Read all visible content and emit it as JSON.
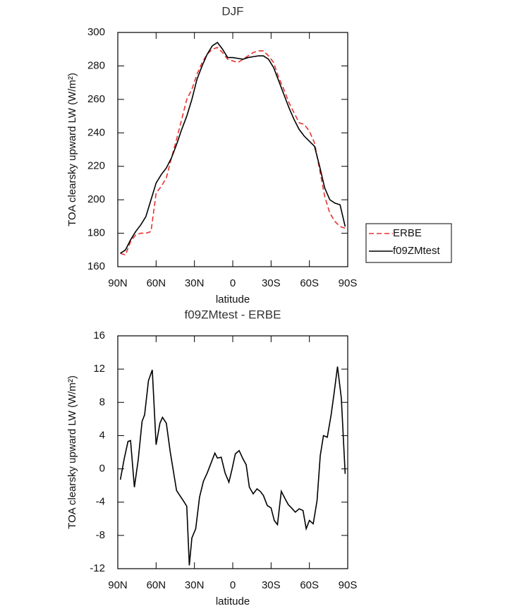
{
  "chart_data": [
    {
      "type": "line",
      "title": "DJF",
      "xlabel": "latitude",
      "ylabel": "TOA clearsky upward LW (W/m²)",
      "xlim": [
        90,
        -90
      ],
      "xticks": [
        {
          "value": 90,
          "label": "90N"
        },
        {
          "value": 60,
          "label": "60N"
        },
        {
          "value": 30,
          "label": "30N"
        },
        0,
        {
          "value": -30,
          "label": "30S"
        },
        {
          "value": -60,
          "label": "60S"
        },
        {
          "value": -90,
          "label": "90S"
        }
      ],
      "ylim": [
        160,
        300
      ],
      "yticks": [
        160,
        180,
        200,
        220,
        240,
        260,
        280,
        300
      ],
      "legend": "right",
      "x": [
        88,
        84,
        80,
        76,
        72,
        68,
        64,
        60,
        56,
        52,
        48,
        44,
        40,
        36,
        32,
        28,
        24,
        20,
        16,
        12,
        8,
        4,
        0,
        -4,
        -8,
        -12,
        -16,
        -20,
        -24,
        -28,
        -32,
        -36,
        -40,
        -44,
        -48,
        -52,
        -56,
        -60,
        -64,
        -68,
        -72,
        -76,
        -80,
        -84,
        -88
      ],
      "series": [
        {
          "name": "ERBE",
          "color": "#e8312f",
          "linestyle": "dashed",
          "values": [
            168,
            167,
            175,
            179,
            180,
            180,
            181,
            204,
            208,
            213,
            225,
            236,
            248,
            260,
            266,
            275,
            282,
            287,
            290,
            291,
            288,
            284,
            283,
            282,
            284,
            286,
            288,
            289,
            289,
            286,
            282,
            273,
            266,
            258,
            252,
            246,
            245,
            241,
            234,
            218,
            202,
            192,
            187,
            184,
            183
          ]
        },
        {
          "name": "f09ZMtest",
          "color": "#000000",
          "linestyle": "solid",
          "values": [
            168,
            170,
            176,
            181,
            185,
            190,
            200,
            210,
            215,
            219,
            225,
            233,
            242,
            250,
            260,
            272,
            280,
            287,
            292,
            294,
            290,
            285,
            285,
            284.5,
            284,
            285,
            285.5,
            286,
            286,
            284,
            279,
            271,
            263,
            255,
            248,
            242,
            238,
            235,
            232,
            220,
            207,
            200,
            198,
            197,
            184
          ]
        }
      ]
    },
    {
      "type": "line",
      "title": "f09ZMtest - ERBE",
      "xlabel": "latitude",
      "ylabel": "TOA clearsky upward LW (W/m²)",
      "xlim": [
        90,
        -90
      ],
      "xticks": [
        {
          "value": 90,
          "label": "90N"
        },
        {
          "value": 60,
          "label": "60N"
        },
        {
          "value": 30,
          "label": "30N"
        },
        0,
        {
          "value": -30,
          "label": "30S"
        },
        {
          "value": -60,
          "label": "60S"
        },
        {
          "value": -90,
          "label": "90S"
        }
      ],
      "ylim": [
        -12,
        16
      ],
      "yticks": [
        -12,
        -8,
        -4,
        0,
        4,
        8,
        12,
        16
      ],
      "color": "#000000",
      "x": [
        88,
        85,
        82,
        80,
        77,
        74,
        71,
        69,
        66,
        63,
        60,
        57,
        55,
        52,
        49,
        44,
        38,
        36,
        34,
        32,
        29,
        26,
        23,
        20,
        17,
        14,
        12,
        9,
        6,
        3,
        0.5,
        -2,
        -5,
        -8,
        -10.5,
        -13,
        -16,
        -19,
        -21.5,
        -24,
        -27,
        -30,
        -32.5,
        -35,
        -38,
        -41,
        -43.5,
        -46,
        -49,
        -52,
        -55,
        -57.5,
        -60,
        -63,
        -66,
        -68.5,
        -71,
        -74,
        -77,
        -79.5,
        -82,
        -85,
        -88
      ],
      "values": [
        -1.3,
        1.2,
        3.3,
        3.4,
        -2.2,
        1.1,
        5.7,
        6.5,
        10.6,
        11.9,
        2.9,
        5.5,
        6.2,
        5.5,
        2.1,
        -2.6,
        -4.0,
        -4.5,
        -11.6,
        -8.3,
        -7.2,
        -3.4,
        -1.5,
        -0.5,
        0.7,
        1.9,
        1.3,
        1.4,
        -0.5,
        -1.6,
        0,
        1.8,
        2.2,
        1.2,
        0.5,
        -2.2,
        -3.0,
        -2.4,
        -2.7,
        -3.2,
        -4.4,
        -4.7,
        -6.2,
        -6.7,
        -2.7,
        -3.6,
        -4.3,
        -4.7,
        -5.2,
        -4.8,
        -5.0,
        -7.2,
        -6.2,
        -6.6,
        -3.8,
        1.6,
        4.0,
        3.8,
        6.5,
        9.3,
        12.3,
        8.5,
        -0.6
      ]
    }
  ]
}
